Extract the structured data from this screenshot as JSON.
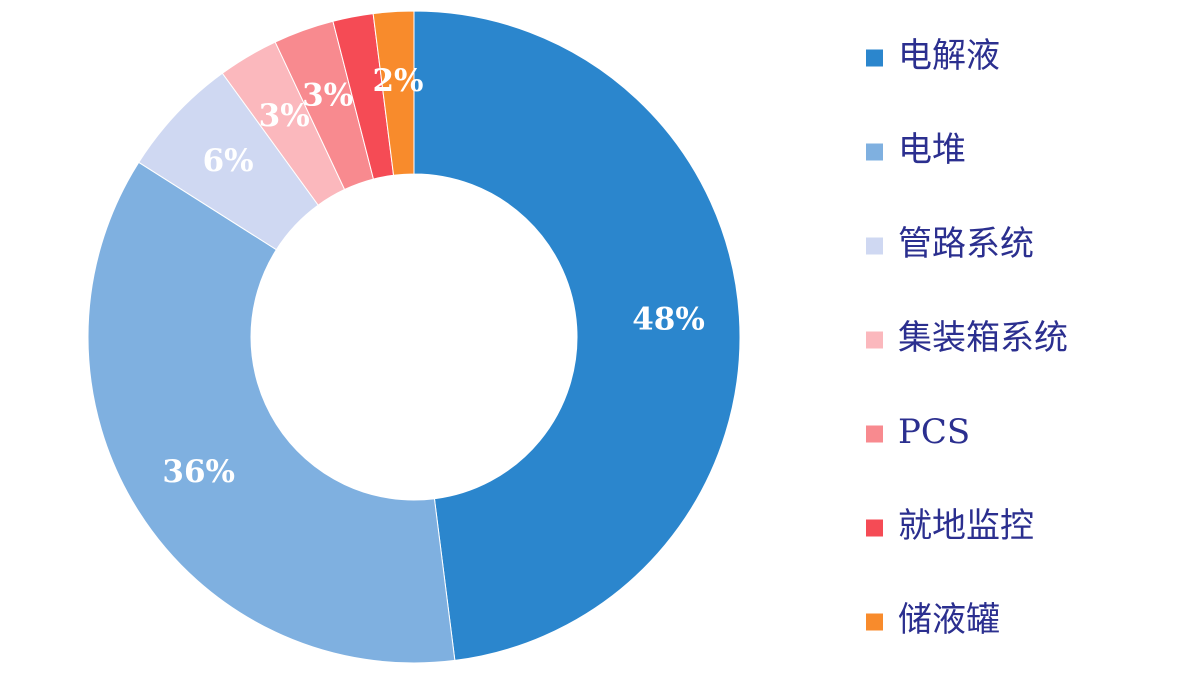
{
  "chart_data": {
    "type": "pie",
    "donut": true,
    "start": "top, clockwise",
    "categories": [
      "电解液",
      "电堆",
      "管路系统",
      "集装箱系统",
      "PCS",
      "就地监控",
      "储液罐"
    ],
    "values": [
      48,
      36,
      6,
      3,
      3,
      2,
      2
    ],
    "labels": [
      "48%",
      "36%",
      "6%",
      "3%",
      "3%",
      "",
      "2%"
    ],
    "colors": [
      "#2b86cd",
      "#7fb0e0",
      "#cfd8f2",
      "#fbb8bd",
      "#f88a8f",
      "#f54b55",
      "#f88b2c"
    ],
    "legend_position": "right",
    "label_color": "#ffffff",
    "legend_text_color": "#2b2f8f"
  }
}
